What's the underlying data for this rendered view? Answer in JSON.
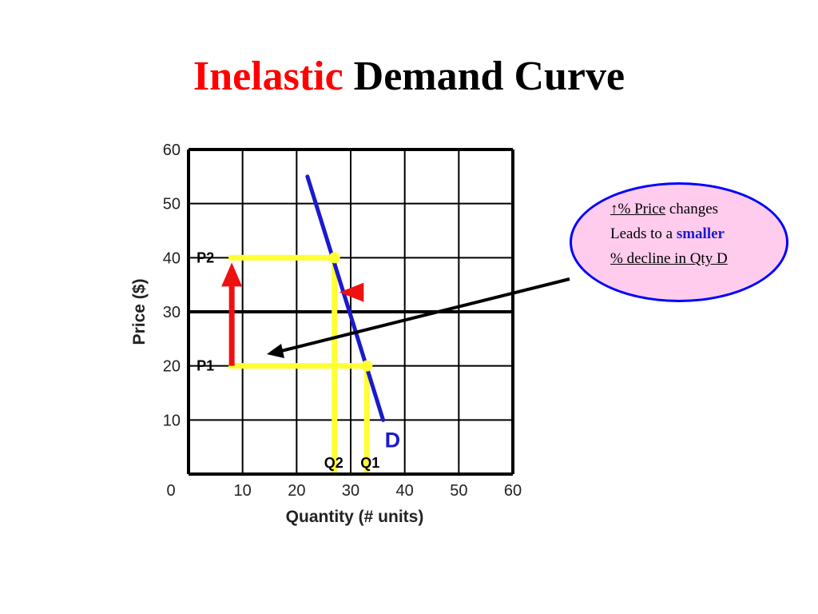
{
  "title": {
    "word_red": "Inelastic",
    "word_black": "Demand Curve"
  },
  "callout": {
    "line1_underlined": "↑% Price",
    "line1_rest": " changes",
    "line2_start": "Leads to a ",
    "line2_emphasis": "smaller",
    "line3": " % decline in Qty D"
  },
  "colors": {
    "title_accent": "#ff0000",
    "demand_line": "#1a1acc",
    "guides": "#ffff33",
    "arrows": "#ee1111",
    "callout_fill": "#ffccee",
    "callout_border": "#0000ff"
  },
  "chart_data": {
    "type": "line",
    "xlabel": "Quantity (# units)",
    "ylabel": "Price ($)",
    "xlim": [
      0,
      60
    ],
    "ylim": [
      0,
      60
    ],
    "x_ticks": [
      0,
      10,
      20,
      30,
      40,
      50,
      60
    ],
    "y_ticks": [
      0,
      10,
      20,
      30,
      40,
      50,
      60
    ],
    "grid": true,
    "series": [
      {
        "name": "D",
        "label": "D",
        "points": [
          [
            22,
            55
          ],
          [
            36,
            10
          ]
        ]
      }
    ],
    "price_levels": [
      {
        "label": "P1",
        "price": 20,
        "quantity": 33
      },
      {
        "label": "P2",
        "price": 40,
        "quantity": 27
      }
    ],
    "quantity_labels": [
      {
        "label": "Q2",
        "quantity": 27
      },
      {
        "label": "Q1",
        "quantity": 33
      }
    ]
  }
}
